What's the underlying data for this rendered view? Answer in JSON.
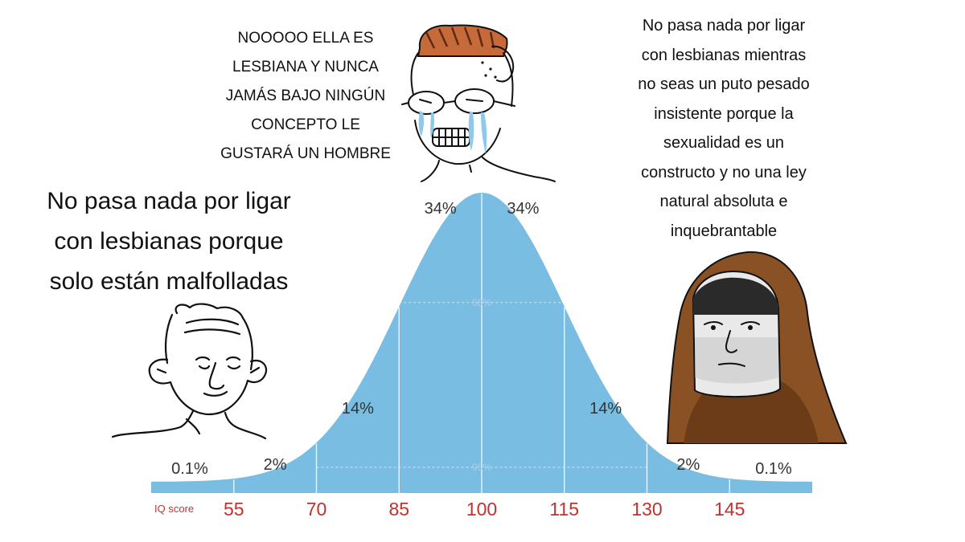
{
  "captions": {
    "left": "No pasa nada por ligar\ncon lesbianas porque\nsolo están malfolladas",
    "top": "NOOOOO ELLA ES\nLESBIANA Y NUNCA\nJAMÁS BAJO NINGÚN\nCONCEPTO LE\nGUSTARÁ UN HOMBRE",
    "right": "No pasa nada por ligar\ncon lesbianas mientras\nno seas un puto pesado\ninsistente porque la\nsexualidad es un\nconstructo y no una ley\nnatural absoluta e\ninquebrantable"
  },
  "characters": [
    {
      "role": "left",
      "icon": "wojak-bald-face-icon"
    },
    {
      "role": "middle",
      "icon": "crying-glasses-wojak-icon"
    },
    {
      "role": "right",
      "icon": "hooded-wojak-icon"
    }
  ],
  "chart_data": {
    "type": "area",
    "distribution": "normal",
    "mean": 100,
    "sd": 15,
    "xlabel": "IQ score",
    "x_ticks": [
      "55",
      "70",
      "85",
      "100",
      "115",
      "130",
      "145"
    ],
    "x_tick_values": [
      55,
      70,
      85,
      100,
      115,
      130,
      145
    ],
    "xlim": [
      40,
      160
    ],
    "band_labels": [
      {
        "label": "0.1%",
        "x": 47
      },
      {
        "label": "2%",
        "x": 62.5
      },
      {
        "label": "14%",
        "x": 77.5
      },
      {
        "label": "34%",
        "x": 92.5
      },
      {
        "label": "34%",
        "x": 107.5
      },
      {
        "label": "14%",
        "x": 122.5
      },
      {
        "label": "2%",
        "x": 137.5
      },
      {
        "label": "0.1%",
        "x": 153
      }
    ],
    "interval_labels": [
      {
        "label": "68%",
        "from": 85,
        "to": 115,
        "level": 0.62
      },
      {
        "label": "95%",
        "from": 70,
        "to": 130,
        "level": 0.05
      }
    ],
    "colors": {
      "fill": "#79bde3",
      "tick_text": "#c0322e",
      "label_text": "#333333",
      "interval_text": "#a9cfe5"
    }
  }
}
